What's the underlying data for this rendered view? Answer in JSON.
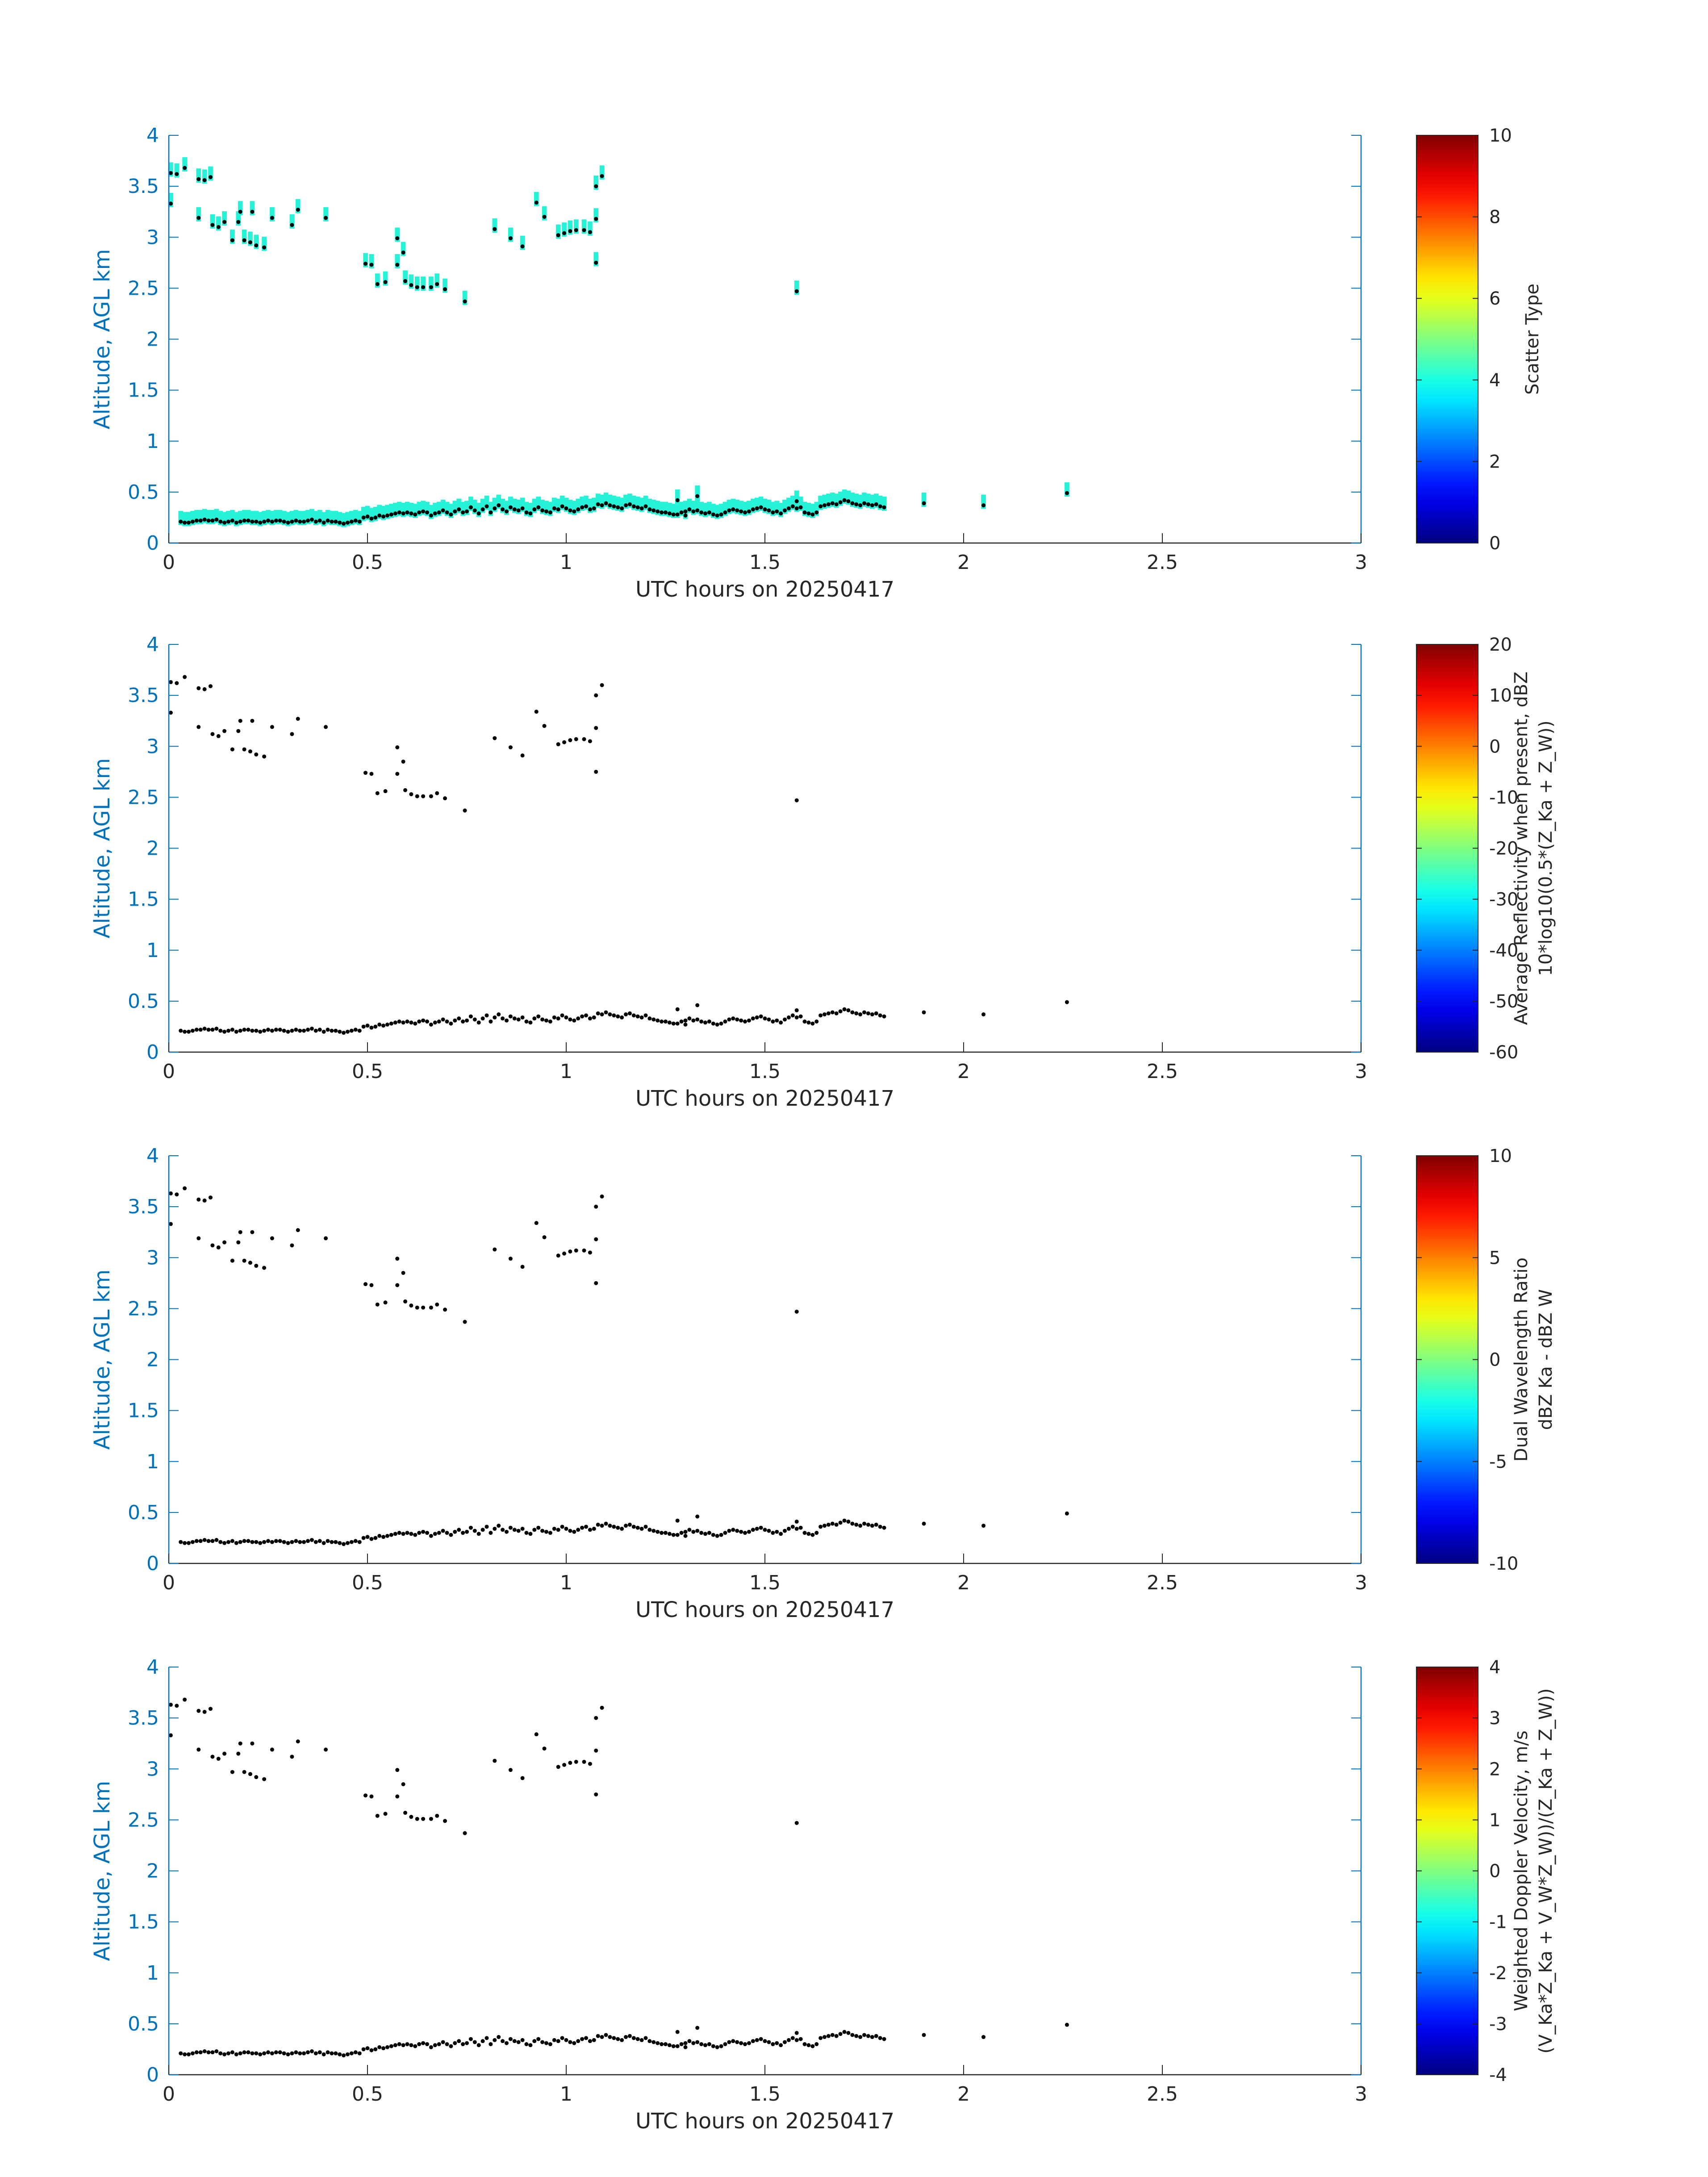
{
  "chart_data": [
    {
      "type": "scatter",
      "panel": "scatter-type",
      "xlabel": "UTC hours on 20250417",
      "ylabel": "Altitude, AGL km",
      "xlim": [
        0,
        3
      ],
      "ylim": [
        0,
        4
      ],
      "xticks": [
        "0",
        "0.5",
        "1",
        "1.5",
        "2",
        "2.5",
        "3"
      ],
      "yticks": [
        "0",
        "0.5",
        "1",
        "1.5",
        "2",
        "2.5",
        "3",
        "3.5",
        "4"
      ],
      "colorbar": {
        "label_lines": [
          "Scatter Type"
        ],
        "range": [
          0,
          10
        ],
        "ticks": [
          "0",
          "2",
          "4",
          "6",
          "8",
          "10"
        ]
      },
      "field_color": "#26f2d8",
      "field_height_km": 0.14,
      "shows_field": true
    },
    {
      "type": "scatter",
      "panel": "reflectivity",
      "xlabel": "UTC hours on 20250417",
      "ylabel": "Altitude, AGL km",
      "xlim": [
        0,
        3
      ],
      "ylim": [
        0,
        4
      ],
      "xticks": [
        "0",
        "0.5",
        "1",
        "1.5",
        "2",
        "2.5",
        "3"
      ],
      "yticks": [
        "0",
        "0.5",
        "1",
        "1.5",
        "2",
        "2.5",
        "3",
        "3.5",
        "4"
      ],
      "colorbar": {
        "label_lines": [
          "Average Reflectivity when present, dBZ",
          "10*log10(0.5*(Z_Ka + Z_W))"
        ],
        "range": [
          -60,
          20
        ],
        "ticks": [
          "-60",
          "-50",
          "-40",
          "-30",
          "-20",
          "-10",
          "0",
          "10",
          "20"
        ]
      },
      "shows_field": false
    },
    {
      "type": "scatter",
      "panel": "dual-wavelength-ratio",
      "xlabel": "UTC hours on 20250417",
      "ylabel": "Altitude, AGL km",
      "xlim": [
        0,
        3
      ],
      "ylim": [
        0,
        4
      ],
      "xticks": [
        "0",
        "0.5",
        "1",
        "1.5",
        "2",
        "2.5",
        "3"
      ],
      "yticks": [
        "0",
        "0.5",
        "1",
        "1.5",
        "2",
        "2.5",
        "3",
        "3.5",
        "4"
      ],
      "colorbar": {
        "label_lines": [
          "Dual Wavelength Ratio",
          "dBZ Ka - dBZ W"
        ],
        "range": [
          -10,
          10
        ],
        "ticks": [
          "-10",
          "-5",
          "0",
          "5",
          "10"
        ]
      },
      "shows_field": false
    },
    {
      "type": "scatter",
      "panel": "doppler-velocity",
      "xlabel": "UTC hours on 20250417",
      "ylabel": "Altitude, AGL km",
      "xlim": [
        0,
        3
      ],
      "ylim": [
        0,
        4
      ],
      "xticks": [
        "0",
        "0.5",
        "1",
        "1.5",
        "2",
        "2.5",
        "3"
      ],
      "yticks": [
        "0",
        "0.5",
        "1",
        "1.5",
        "2",
        "2.5",
        "3",
        "3.5",
        "4"
      ],
      "colorbar": {
        "label_lines": [
          "Weighted Doppler Velocity, m/s",
          "(V_Ka*Z_Ka + V_W*Z_W))/(Z_Ka + Z_W))"
        ],
        "range": [
          -4,
          4
        ],
        "ticks": [
          "-4",
          "-3",
          "-2",
          "-1",
          "0",
          "1",
          "2",
          "3",
          "4"
        ]
      },
      "shows_field": false
    }
  ],
  "cloud_top_points": [
    [
      0.005,
      3.33
    ],
    [
      0.005,
      3.63
    ],
    [
      0.02,
      3.62
    ],
    [
      0.04,
      3.68
    ],
    [
      0.075,
      3.19
    ],
    [
      0.075,
      3.57
    ],
    [
      0.09,
      3.56
    ],
    [
      0.105,
      3.59
    ],
    [
      0.11,
      3.12
    ],
    [
      0.125,
      3.1
    ],
    [
      0.14,
      3.15
    ],
    [
      0.16,
      2.97
    ],
    [
      0.175,
      3.15
    ],
    [
      0.18,
      3.25
    ],
    [
      0.19,
      2.97
    ],
    [
      0.205,
      2.95
    ],
    [
      0.21,
      3.25
    ],
    [
      0.22,
      2.92
    ],
    [
      0.24,
      2.9
    ],
    [
      0.26,
      3.19
    ],
    [
      0.31,
      3.12
    ],
    [
      0.325,
      3.27
    ],
    [
      0.395,
      3.19
    ],
    [
      0.495,
      2.74
    ],
    [
      0.51,
      2.73
    ],
    [
      0.525,
      2.54
    ],
    [
      0.545,
      2.56
    ],
    [
      0.575,
      2.73
    ],
    [
      0.575,
      2.99
    ],
    [
      0.59,
      2.85
    ],
    [
      0.595,
      2.57
    ],
    [
      0.61,
      2.53
    ],
    [
      0.625,
      2.51
    ],
    [
      0.64,
      2.51
    ],
    [
      0.66,
      2.51
    ],
    [
      0.675,
      2.54
    ],
    [
      0.695,
      2.49
    ],
    [
      0.745,
      2.37
    ],
    [
      0.82,
      3.08
    ],
    [
      0.86,
      2.99
    ],
    [
      0.89,
      2.91
    ],
    [
      0.925,
      3.34
    ],
    [
      0.945,
      3.2
    ],
    [
      0.98,
      3.02
    ],
    [
      0.995,
      3.04
    ],
    [
      1.01,
      3.06
    ],
    [
      1.025,
      3.07
    ],
    [
      1.045,
      3.07
    ],
    [
      1.06,
      3.05
    ],
    [
      1.075,
      3.18
    ],
    [
      1.075,
      3.5
    ],
    [
      1.075,
      2.75
    ],
    [
      1.09,
      3.6
    ],
    [
      1.58,
      2.47
    ]
  ],
  "bl_points_start": 0.03,
  "bl_points_step": 0.01,
  "bl_points_y": [
    0.21,
    0.2,
    0.2,
    0.21,
    0.22,
    0.22,
    0.23,
    0.22,
    0.22,
    0.23,
    0.21,
    0.2,
    0.21,
    0.22,
    0.2,
    0.21,
    0.22,
    0.22,
    0.21,
    0.21,
    0.2,
    0.21,
    0.22,
    0.21,
    0.22,
    0.22,
    0.21,
    0.2,
    0.21,
    0.22,
    0.21,
    0.21,
    0.22,
    0.23,
    0.21,
    0.22,
    0.2,
    0.22,
    0.21,
    0.21,
    0.2,
    0.19,
    0.2,
    0.21,
    0.22,
    0.21,
    0.25,
    0.26,
    0.24,
    0.25,
    0.27,
    0.26,
    0.27,
    0.28,
    0.29,
    0.3,
    0.29,
    0.3,
    0.29,
    0.28,
    0.3,
    0.31,
    0.3,
    0.27,
    0.29,
    0.3,
    0.32,
    0.3,
    0.28,
    0.31,
    0.33,
    0.3,
    0.31,
    0.35,
    0.32,
    0.29,
    0.33,
    0.36,
    0.3,
    0.34,
    0.37,
    0.33,
    0.31,
    0.35,
    0.33,
    0.32,
    0.34,
    0.3,
    0.29,
    0.33,
    0.35,
    0.32,
    0.31,
    0.3,
    0.34,
    0.33,
    0.36,
    0.34,
    0.32,
    0.31,
    0.33,
    0.35,
    0.36,
    0.33,
    0.34,
    0.38,
    0.37,
    0.39,
    0.37,
    0.36,
    0.35,
    0.34,
    0.37,
    0.38,
    0.36,
    0.35,
    0.34,
    0.36,
    0.33,
    0.32,
    0.31,
    0.3,
    0.3,
    0.29,
    0.28,
    0.28,
    0.3,
    0.31,
    0.33,
    0.31,
    0.32,
    0.3,
    0.29,
    0.3,
    0.28,
    0.27,
    0.28,
    0.3,
    0.32,
    0.33,
    0.32,
    0.31,
    0.3,
    0.31,
    0.33,
    0.34,
    0.35,
    0.33,
    0.32,
    0.3,
    0.31,
    0.29,
    0.32,
    0.34,
    0.36,
    0.34,
    0.35,
    0.3,
    0.29,
    0.28,
    0.3,
    0.36,
    0.37,
    0.38,
    0.39,
    0.38,
    0.4,
    0.42,
    0.41,
    0.39,
    0.38,
    0.37,
    0.39,
    0.38,
    0.37,
    0.38,
    0.36,
    0.35
  ],
  "bl_points_extra": [
    [
      2.26,
      0.49
    ],
    [
      1.33,
      0.46
    ],
    [
      1.28,
      0.42
    ],
    [
      1.3,
      0.27
    ],
    [
      1.58,
      0.41
    ],
    [
      1.9,
      0.39
    ],
    [
      2.05,
      0.37
    ]
  ]
}
